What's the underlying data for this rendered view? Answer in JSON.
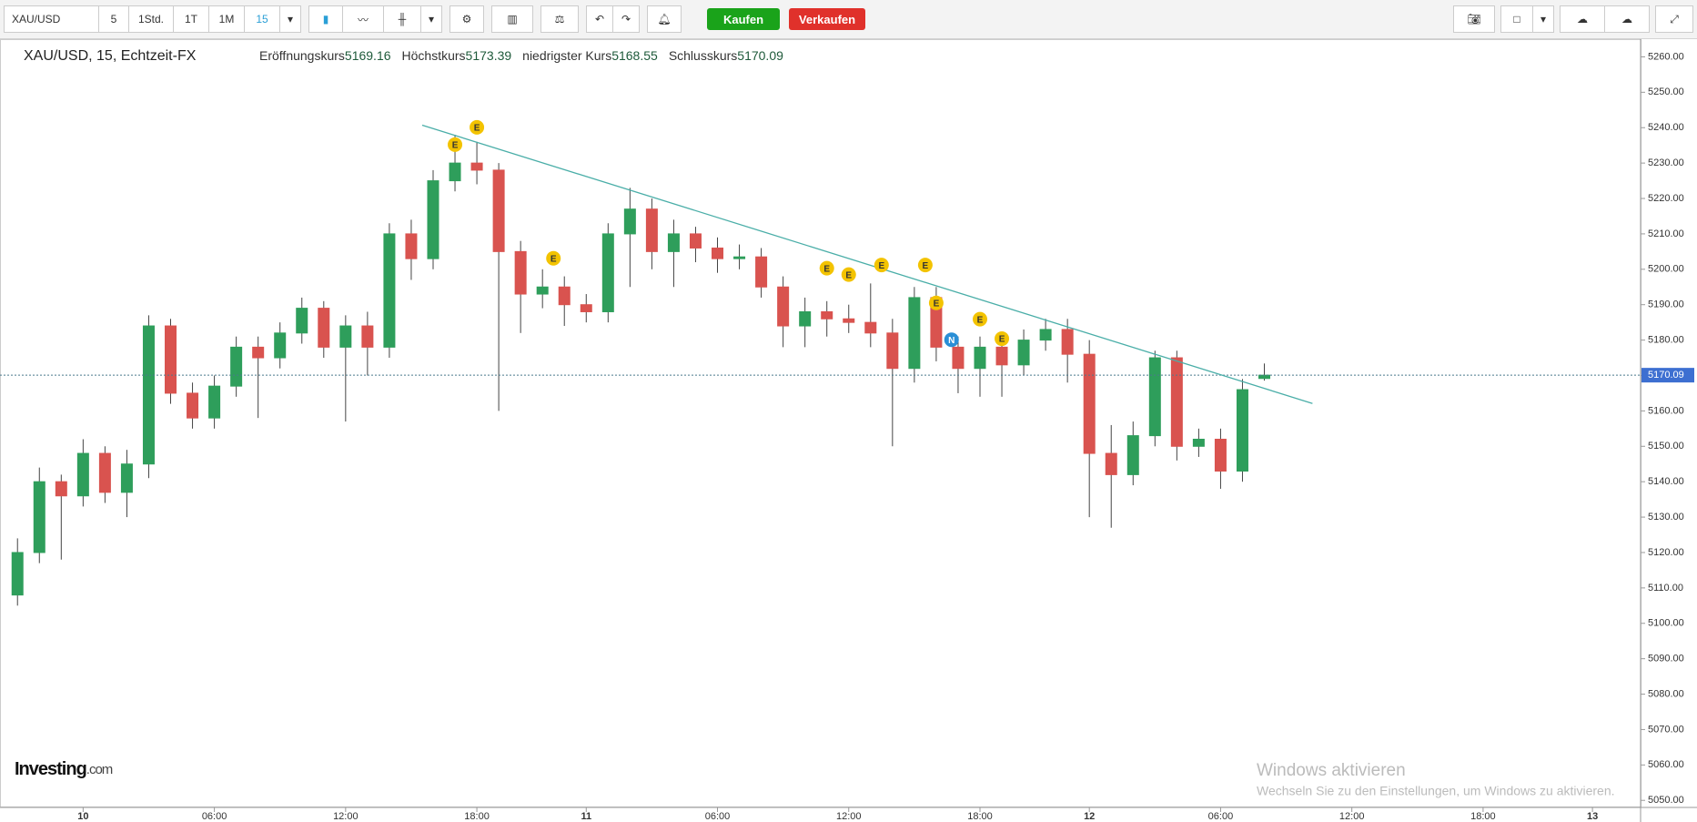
{
  "toolbar": {
    "symbol": "XAU/USD",
    "intervals": [
      "5",
      "1Std.",
      "1T",
      "1M",
      "15"
    ],
    "buy": "Kaufen",
    "sell": "Verkaufen"
  },
  "chart_data": {
    "type": "candlestick",
    "title": "XAU/USD, 15, Echtzeit-FX",
    "ohlc_labels": [
      "Eröffnungskurs",
      "Höchstkurs",
      "niedrigster Kurs",
      "Schlusskurs"
    ],
    "up_color": "#2e9e5b",
    "down_color": "#d9534f",
    "x": [
      -3,
      -2,
      -1,
      0,
      1,
      2,
      3,
      4,
      5,
      6,
      7,
      8,
      9,
      10,
      11,
      12,
      13,
      14,
      15,
      16,
      17,
      18,
      19,
      20,
      21,
      22,
      23,
      24,
      25,
      26,
      27,
      28,
      29,
      30,
      31,
      32,
      33,
      34,
      35,
      36,
      37,
      38,
      39,
      40,
      41,
      42,
      43,
      44,
      45,
      46,
      47,
      48,
      49,
      50,
      51,
      52,
      53,
      54
    ],
    "open": [
      5108,
      5120,
      5140,
      5136,
      5148,
      5137,
      5145,
      5184,
      5165,
      5158,
      5167,
      5178,
      5175,
      5182,
      5189,
      5178,
      5184,
      5178,
      5210,
      5203,
      5225,
      5230,
      5228,
      5205,
      5193,
      5195,
      5190,
      5188,
      5210,
      5217,
      5205,
      5210,
      5206,
      5203,
      5203.5,
      5195,
      5184,
      5188,
      5186,
      5185,
      5182,
      5172,
      5192,
      5178,
      5172,
      5178,
      5173,
      5180,
      5183,
      5176,
      5148,
      5142,
      5153,
      5175,
      5150,
      5152,
      5143,
      5169.16
    ],
    "high": [
      5124,
      5144,
      5142,
      5152,
      5150,
      5149,
      5187,
      5186,
      5168,
      5170,
      5181,
      5181,
      5185,
      5192,
      5191,
      5187,
      5188,
      5213,
      5214,
      5228,
      5238,
      5236,
      5230,
      5208,
      5200,
      5198,
      5193,
      5213,
      5223,
      5220,
      5214,
      5212,
      5209,
      5207,
      5206,
      5198,
      5192,
      5191,
      5190,
      5196,
      5186,
      5195,
      5195,
      5181,
      5181,
      5181,
      5183,
      5186,
      5186,
      5180,
      5156,
      5157,
      5177,
      5177,
      5155,
      5155,
      5169,
      5173.39
    ],
    "low": [
      5105,
      5117,
      5118,
      5133,
      5134,
      5130,
      5141,
      5162,
      5155,
      5155,
      5164,
      5158,
      5172,
      5179,
      5175,
      5157,
      5170,
      5175,
      5197,
      5200,
      5222,
      5224,
      5160,
      5182,
      5189,
      5184,
      5185,
      5185,
      5195,
      5200,
      5195,
      5202,
      5199,
      5200,
      5192,
      5178,
      5178,
      5181,
      5182,
      5178,
      5150,
      5168,
      5174,
      5165,
      5164,
      5164,
      5170,
      5177,
      5168,
      5130,
      5127,
      5139,
      5150,
      5146,
      5147,
      5138,
      5140,
      5168.55
    ],
    "close": [
      5120,
      5140,
      5136,
      5148,
      5137,
      5145,
      5184,
      5165,
      5158,
      5167,
      5178,
      5175,
      5182,
      5189,
      5178,
      5184,
      5178,
      5210,
      5203,
      5225,
      5230,
      5228,
      5205,
      5193,
      5195,
      5190,
      5188,
      5210,
      5217,
      5205,
      5210,
      5206,
      5203,
      5203.5,
      5195,
      5184,
      5188,
      5186,
      5185,
      5182,
      5172,
      5192,
      5178,
      5172,
      5178,
      5173,
      5180,
      5183,
      5176,
      5148,
      5142,
      5153,
      5175,
      5150,
      5152,
      5143,
      5166,
      5170.09
    ],
    "xlim": [
      -3.8,
      71.2
    ],
    "xticks": [
      {
        "value": 0,
        "label": "10"
      },
      {
        "value": 6,
        "label": "06:00"
      },
      {
        "value": 12,
        "label": "12:00"
      },
      {
        "value": 18,
        "label": "18:00"
      },
      {
        "value": 23,
        "label": "11"
      },
      {
        "value": 29,
        "label": "06:00"
      },
      {
        "value": 35,
        "label": "12:00"
      },
      {
        "value": 41,
        "label": "18:00"
      },
      {
        "value": 46,
        "label": "12"
      },
      {
        "value": 52,
        "label": "06:00"
      },
      {
        "value": 58,
        "label": "12:00"
      },
      {
        "value": 64,
        "label": "18:00"
      },
      {
        "value": 69,
        "label": "13"
      }
    ],
    "ylim": [
      5048,
      5265
    ],
    "yticks": [
      {
        "value": 5050,
        "label": "5050.00"
      },
      {
        "value": 5060,
        "label": "5060.00"
      },
      {
        "value": 5070,
        "label": "5070.00"
      },
      {
        "value": 5080,
        "label": "5080.00"
      },
      {
        "value": 5090,
        "label": "5090.00"
      },
      {
        "value": 5100,
        "label": "5100.00"
      },
      {
        "value": 5110,
        "label": "5110.00"
      },
      {
        "value": 5120,
        "label": "5120.00"
      },
      {
        "value": 5130,
        "label": "5130.00"
      },
      {
        "value": 5140,
        "label": "5140.00"
      },
      {
        "value": 5150,
        "label": "5150.00"
      },
      {
        "value": 5160,
        "label": "5160.00"
      },
      {
        "value": 5170,
        "label": "5170.00"
      },
      {
        "value": 5180,
        "label": "5180.00"
      },
      {
        "value": 5190,
        "label": "5190.00"
      },
      {
        "value": 5200,
        "label": "5200.00"
      },
      {
        "value": 5210,
        "label": "5210.00"
      },
      {
        "value": 5220,
        "label": "5220.00"
      },
      {
        "value": 5230,
        "label": "5230.00"
      },
      {
        "value": 5240,
        "label": "5240.00"
      },
      {
        "value": 5250,
        "label": "5250.00"
      },
      {
        "value": 5260,
        "label": "5260.00"
      }
    ],
    "trendline": {
      "x": [
        15.5,
        56.2
      ],
      "y": [
        5240.7,
        5162.1
      ],
      "color": "#4aaea8"
    },
    "events": [
      {
        "x": 18,
        "y": 5240.1,
        "label": "E"
      },
      {
        "x": 17,
        "y": 5235.2,
        "label": "E"
      },
      {
        "x": 21.5,
        "y": 5203.1,
        "label": "E"
      },
      {
        "x": 34,
        "y": 5200.3,
        "label": "E"
      },
      {
        "x": 35,
        "y": 5198.5,
        "label": "E"
      },
      {
        "x": 36.5,
        "y": 5201.2,
        "label": "E"
      },
      {
        "x": 38.5,
        "y": 5201.2,
        "label": "E"
      },
      {
        "x": 39,
        "y": 5190.5,
        "label": "E"
      },
      {
        "x": 41,
        "y": 5185.9,
        "label": "E"
      },
      {
        "x": 42,
        "y": 5180.4,
        "label": "E"
      },
      {
        "x": 39.7,
        "y": 5180.1,
        "label": "N"
      }
    ]
  },
  "watermark": {
    "brand": "Investing",
    "suffix": ".com"
  },
  "windows_notice": {
    "title": "Windows aktivieren",
    "text": "Wechseln Sie zu den Einstellungen, um Windows zu aktivieren."
  }
}
